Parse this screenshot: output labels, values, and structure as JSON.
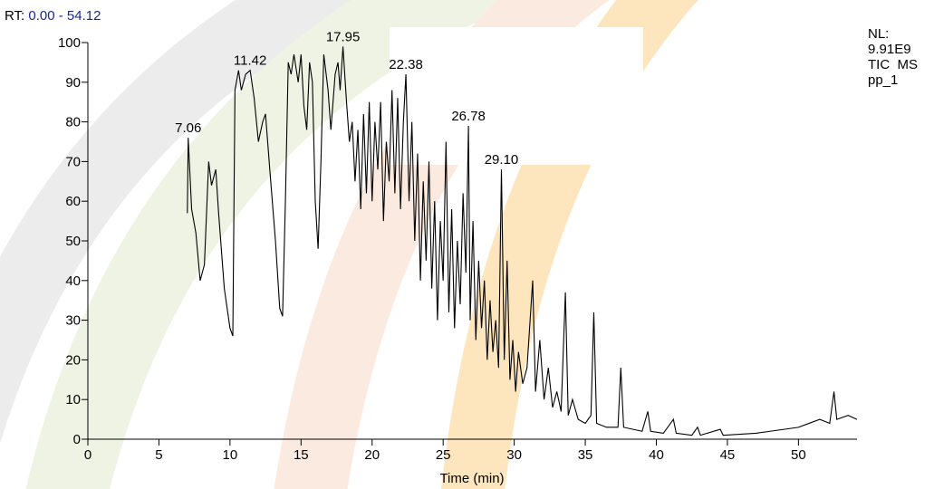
{
  "chart_data": {
    "type": "line",
    "rt_label": "RT:",
    "rt_range": "0.00 - 54.12",
    "info": [
      "NL:",
      "9.91E9",
      "TIC  MS",
      "pp_1"
    ],
    "x_label": "Time (min)",
    "xlim": [
      0,
      54.12
    ],
    "ylim": [
      0,
      100
    ],
    "xticks": [
      0,
      5,
      10,
      15,
      20,
      25,
      30,
      35,
      40,
      45,
      50
    ],
    "yticks": [
      0,
      10,
      20,
      30,
      40,
      50,
      60,
      70,
      80,
      90,
      100
    ],
    "series": [
      {
        "color": "#000000",
        "x": [
          7.0,
          7.06,
          7.3,
          7.6,
          7.9,
          8.2,
          8.5,
          8.7,
          9.0,
          9.2,
          9.6,
          10.0,
          10.2,
          10.35,
          10.6,
          10.8,
          11.1,
          11.42,
          11.7,
          12.0,
          12.3,
          12.5,
          12.8,
          13.2,
          13.5,
          13.7,
          13.9,
          14.1,
          14.3,
          14.5,
          14.8,
          15.0,
          15.2,
          15.4,
          15.6,
          15.8,
          16.0,
          16.2,
          16.4,
          16.6,
          16.9,
          17.1,
          17.4,
          17.6,
          17.75,
          17.95,
          18.2,
          18.4,
          18.6,
          18.8,
          19.0,
          19.2,
          19.4,
          19.6,
          19.8,
          20.0,
          20.2,
          20.4,
          20.6,
          20.8,
          21.0,
          21.2,
          21.4,
          21.6,
          21.8,
          22.0,
          22.2,
          22.38,
          22.6,
          22.8,
          23.0,
          23.2,
          23.4,
          23.6,
          23.8,
          24.0,
          24.2,
          24.4,
          24.6,
          24.8,
          25.0,
          25.2,
          25.4,
          25.6,
          25.8,
          26.0,
          26.2,
          26.4,
          26.6,
          26.78,
          26.9,
          27.1,
          27.3,
          27.5,
          27.7,
          27.9,
          28.1,
          28.3,
          28.5,
          28.7,
          28.9,
          29.1,
          29.3,
          29.5,
          29.7,
          29.9,
          30.1,
          30.3,
          30.6,
          30.9,
          31.3,
          31.5,
          31.8,
          32.1,
          32.4,
          32.7,
          33.0,
          33.3,
          33.6,
          33.8,
          34.1,
          34.5,
          35.0,
          35.4,
          35.6,
          35.8,
          36.5,
          37.3,
          37.5,
          37.7,
          39.0,
          39.4,
          39.6,
          40.5,
          41.2,
          41.4,
          42.5,
          42.9,
          43.1,
          44.5,
          44.7,
          47.0,
          48.0,
          50.0,
          51.5,
          52.2,
          52.5,
          52.7,
          53.5,
          54.12
        ],
        "values": [
          57,
          76,
          58,
          52,
          40,
          44,
          70,
          64,
          68,
          57,
          38,
          28,
          26,
          88,
          93,
          88,
          92,
          93,
          86,
          75,
          80,
          82,
          68,
          50,
          33,
          31,
          60,
          95,
          92,
          97,
          90,
          97,
          84,
          78,
          95,
          90,
          60,
          48,
          70,
          97,
          88,
          78,
          92,
          95,
          88,
          99,
          85,
          75,
          80,
          65,
          78,
          58,
          82,
          62,
          85,
          60,
          80,
          68,
          85,
          55,
          75,
          65,
          88,
          62,
          86,
          58,
          80,
          92,
          60,
          80,
          50,
          72,
          40,
          65,
          45,
          70,
          38,
          60,
          30,
          55,
          40,
          75,
          32,
          58,
          28,
          50,
          34,
          62,
          42,
          79,
          30,
          55,
          25,
          45,
          28,
          40,
          20,
          35,
          22,
          30,
          18,
          68,
          20,
          45,
          15,
          25,
          12,
          22,
          14,
          18,
          40,
          12,
          25,
          10,
          18,
          8,
          12,
          7,
          37,
          6,
          10,
          5,
          4,
          6,
          32,
          4,
          3,
          3,
          18,
          3,
          2,
          7,
          2,
          1.5,
          5,
          1.5,
          1,
          3,
          1,
          2.5,
          1,
          1.5,
          2,
          3,
          5,
          4,
          12,
          5,
          6,
          5
        ]
      }
    ],
    "peak_labels": [
      {
        "x": 7.06,
        "label": "7.06"
      },
      {
        "x": 11.42,
        "label": "11.42"
      },
      {
        "x": 17.95,
        "label": "17.95"
      },
      {
        "x": 22.38,
        "label": "22.38"
      },
      {
        "x": 26.78,
        "label": "26.78"
      },
      {
        "x": 29.1,
        "label": "29.10"
      }
    ]
  }
}
